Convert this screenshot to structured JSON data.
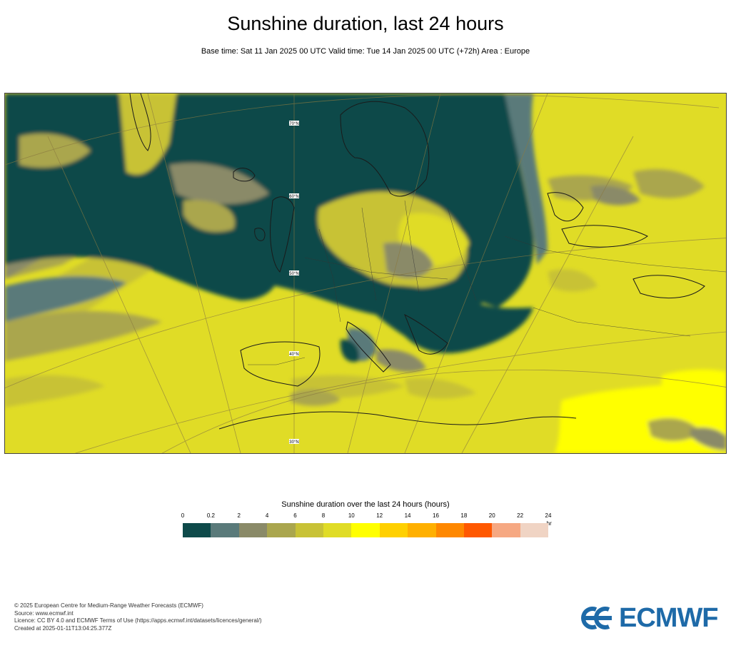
{
  "title": "Sunshine duration, last 24 hours",
  "subtitle": "Base time: Sat 11 Jan 2025 00 UTC Valid time: Tue 14 Jan 2025 00 UTC (+72h) Area : Europe",
  "map": {
    "area": "Europe",
    "parameter": "Sunshine duration",
    "graticule_labels": [
      "70°N",
      "60°N",
      "50°N",
      "40°N",
      "30°N"
    ]
  },
  "legend": {
    "title": "Sunshine duration over the last 24 hours (hours)",
    "ticks": [
      "0",
      "0.2",
      "2",
      "4",
      "6",
      "8",
      "10",
      "12",
      "14",
      "16",
      "18",
      "20",
      "22",
      "24"
    ],
    "unit": "-hr",
    "colors": [
      "#0e4a4a",
      "#5a7a7a",
      "#8a8a68",
      "#aaa64e",
      "#c8c236",
      "#e0dc26",
      "#ffff00",
      "#ffd000",
      "#ffb000",
      "#ff8800",
      "#ff5800",
      "#f6a882",
      "#f0d4c4"
    ]
  },
  "footer": {
    "line1": "© 2025 European Centre for Medium-Range Weather Forecasts (ECMWF)",
    "line2": "Source: www.ecmwf.int",
    "line3": "Licence: CC BY 4.0 and ECMWF Terms of Use (https://apps.ecmwf.int/datasets/licences/general/)",
    "line4": "Created at 2025-01-11T13:04:25.377Z"
  },
  "logo": {
    "text": "ECMWF",
    "color": "#1e6aa8"
  }
}
